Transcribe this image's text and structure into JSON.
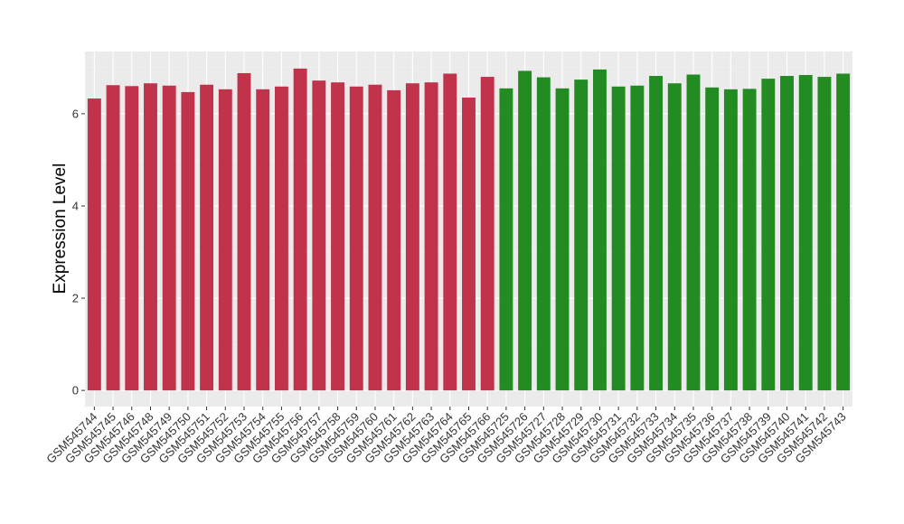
{
  "chart_data": {
    "type": "bar",
    "title": "",
    "xlabel": "",
    "ylabel": "Expression Level",
    "ylim": [
      -0.35,
      7.35
    ],
    "yticks": [
      0,
      2,
      4,
      6
    ],
    "grid": true,
    "legend": "none",
    "categories": [
      "GSM545744",
      "GSM545745",
      "GSM545746",
      "GSM545748",
      "GSM545749",
      "GSM545750",
      "GSM545751",
      "GSM545752",
      "GSM545753",
      "GSM545754",
      "GSM545755",
      "GSM545756",
      "GSM545757",
      "GSM545758",
      "GSM545759",
      "GSM545760",
      "GSM545761",
      "GSM545762",
      "GSM545763",
      "GSM545764",
      "GSM545765",
      "GSM545766",
      "GSM545725",
      "GSM545726",
      "GSM545727",
      "GSM545728",
      "GSM545729",
      "GSM545730",
      "GSM545731",
      "GSM545732",
      "GSM545733",
      "GSM545734",
      "GSM545735",
      "GSM545736",
      "GSM545737",
      "GSM545738",
      "GSM545739",
      "GSM545740",
      "GSM545741",
      "GSM545742",
      "GSM545743"
    ],
    "values": [
      6.33,
      6.62,
      6.6,
      6.66,
      6.61,
      6.47,
      6.63,
      6.53,
      6.88,
      6.53,
      6.59,
      6.98,
      6.72,
      6.68,
      6.59,
      6.63,
      6.51,
      6.66,
      6.68,
      6.87,
      6.35,
      6.8,
      6.55,
      6.93,
      6.79,
      6.55,
      6.74,
      6.96,
      6.59,
      6.61,
      6.82,
      6.66,
      6.85,
      6.57,
      6.53,
      6.54,
      6.76,
      6.82,
      6.84,
      6.8,
      6.87
    ],
    "group_sizes": [
      22,
      19
    ],
    "colors": {
      "group1": "#c0334b",
      "group2": "#228b22",
      "panel_background": "#ebebeb",
      "grid_major": "#ffffff",
      "grid_minor": "#f5f5f5"
    }
  }
}
